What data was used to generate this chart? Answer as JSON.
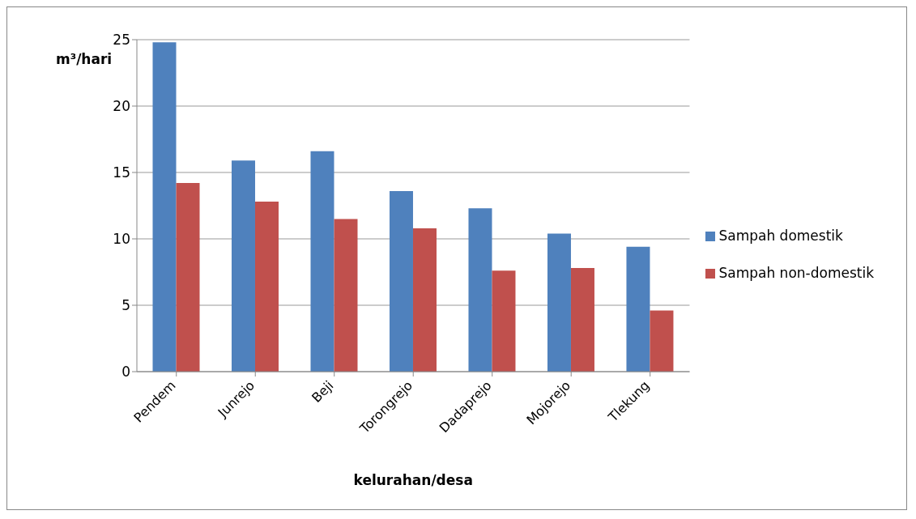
{
  "chart_data": {
    "type": "bar",
    "ylabel": "m³/hari",
    "xlabel": "kelurahan/desa",
    "categories": [
      "Pendem",
      "Junrejo",
      "Beji",
      "Torongrejo",
      "Dadaprejo",
      "Mojorejo",
      "Tlekung"
    ],
    "series": [
      {
        "name": "Sampah domestik",
        "color": "#4f81bd",
        "values": [
          24.8,
          15.9,
          16.6,
          13.6,
          12.3,
          10.4,
          9.4
        ]
      },
      {
        "name": "Sampah non-domestik",
        "color": "#c0504d",
        "values": [
          14.2,
          12.8,
          11.5,
          10.8,
          7.6,
          7.8,
          4.6
        ]
      }
    ],
    "ylim": [
      0,
      25
    ],
    "yticks": [
      0,
      5,
      10,
      15,
      20,
      25
    ],
    "grid": "y",
    "legend": "right"
  }
}
